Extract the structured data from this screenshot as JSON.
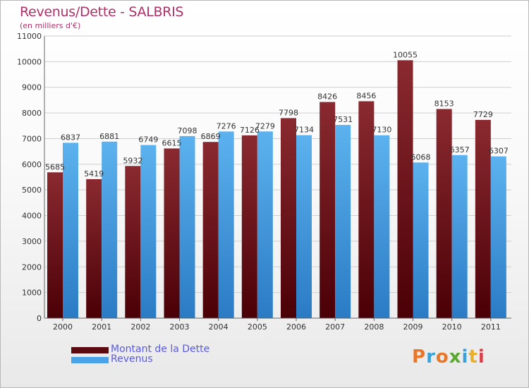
{
  "header": {
    "title": "Revenus/Dette - SALBRIS",
    "subtitle": "(en milliers d'€)"
  },
  "legend": {
    "items": [
      {
        "label": "Montant de la Dette",
        "color": "#7a1a1f"
      },
      {
        "label": "Revenus",
        "color": "#4aa3e8"
      }
    ]
  },
  "logo": {
    "text": "Proxiti",
    "letter_colors": [
      "#e8772a",
      "#3aa0d8",
      "#e8772a",
      "#5aa832",
      "#3aa0d8",
      "#e8b02a",
      "#d8404a"
    ]
  },
  "chart_data": {
    "type": "bar",
    "title": "Revenus/Dette - SALBRIS",
    "subtitle": "(en milliers d'€)",
    "categories": [
      "2000",
      "2001",
      "2002",
      "2003",
      "2004",
      "2005",
      "2006",
      "2007",
      "2008",
      "2009",
      "2010",
      "2011"
    ],
    "series": [
      {
        "name": "Montant de la Dette",
        "color": "#7a1a1f",
        "values": [
          5685,
          5419,
          5932,
          6615,
          6869,
          7126,
          7798,
          8426,
          8456,
          10055,
          8153,
          7729
        ]
      },
      {
        "name": "Revenus",
        "color": "#4aa3e8",
        "values": [
          6837,
          6881,
          6749,
          7098,
          7276,
          7279,
          7134,
          7531,
          7130,
          6068,
          6357,
          6307
        ]
      }
    ],
    "ylim": [
      0,
      11000
    ],
    "yticks": [
      0,
      1000,
      2000,
      3000,
      4000,
      5000,
      6000,
      7000,
      8000,
      9000,
      10000,
      11000
    ],
    "grid": true,
    "legend_position": "bottom-left"
  }
}
